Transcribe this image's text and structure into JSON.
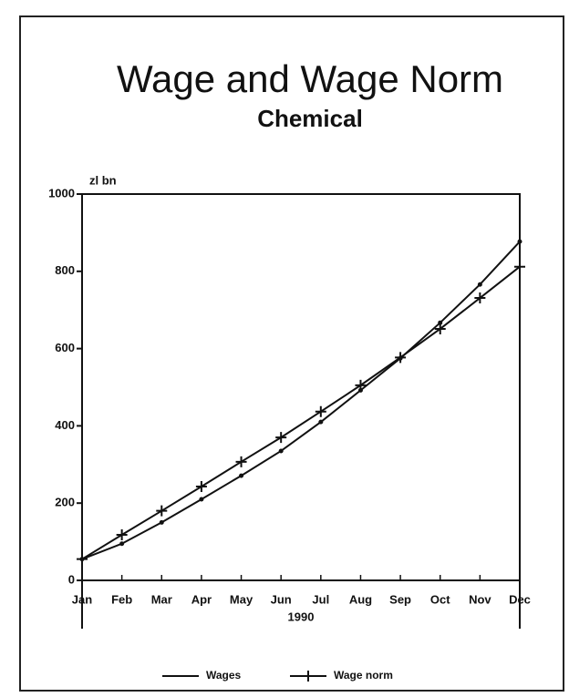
{
  "chart_data": {
    "type": "line",
    "title": "Wage and Wage Norm",
    "subtitle": "Chemical",
    "y_unit_label": "zl bn",
    "x_label": "1990",
    "categories": [
      "Jan",
      "Feb",
      "Mar",
      "Apr",
      "May",
      "Jun",
      "Jul",
      "Aug",
      "Sep",
      "Oct",
      "Nov",
      "Dec"
    ],
    "series": [
      {
        "name": "Wages",
        "color": "#111111",
        "marker": "dot",
        "values": [
          55,
          95,
          150,
          210,
          271,
          335,
          410,
          492,
          575,
          667,
          766,
          877
        ]
      },
      {
        "name": "Wage norm",
        "color": "#111111",
        "marker": "cross",
        "values": [
          55,
          118,
          180,
          243,
          307,
          370,
          437,
          505,
          577,
          651,
          731,
          812
        ]
      }
    ],
    "ylim": [
      0,
      1000
    ],
    "yticks": [
      0,
      200,
      400,
      600,
      800,
      1000
    ],
    "legend": "bottom"
  }
}
